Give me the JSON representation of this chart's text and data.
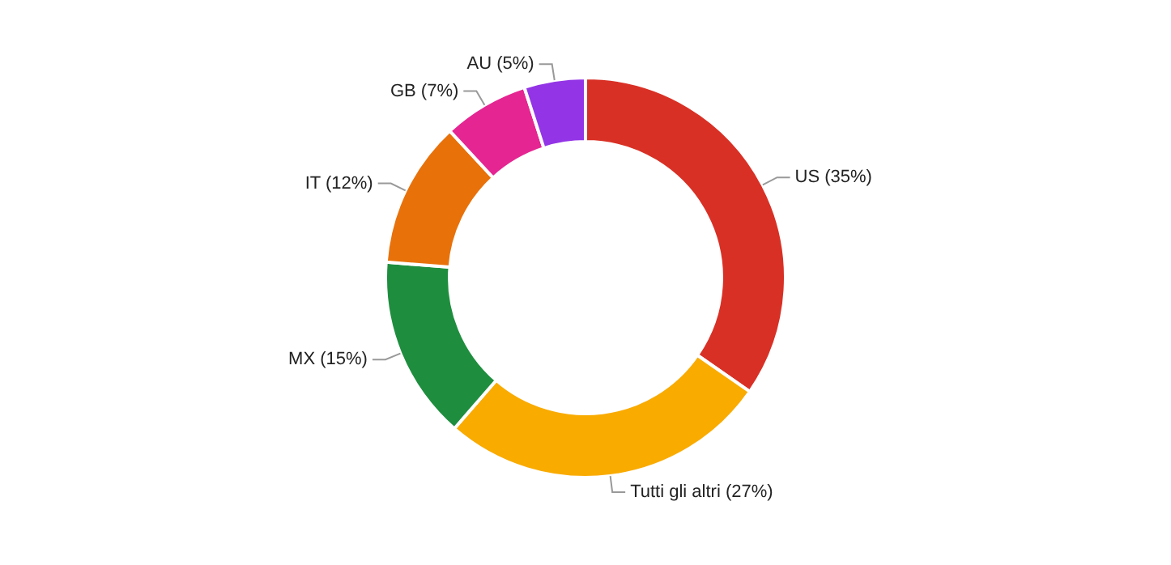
{
  "chart_data": {
    "type": "donut",
    "categories": [
      "US (35%)",
      "Tutti gli altri (27%)",
      "MX (15%)",
      "IT (12%)",
      "GB (7%)",
      "AU (5%)"
    ],
    "values": [
      35,
      27,
      15,
      12,
      7,
      5
    ],
    "colors": [
      "#d93025",
      "#f9ab00",
      "#1e8e3e",
      "#e8710a",
      "#e52592",
      "#9334e6"
    ],
    "legend": false
  }
}
